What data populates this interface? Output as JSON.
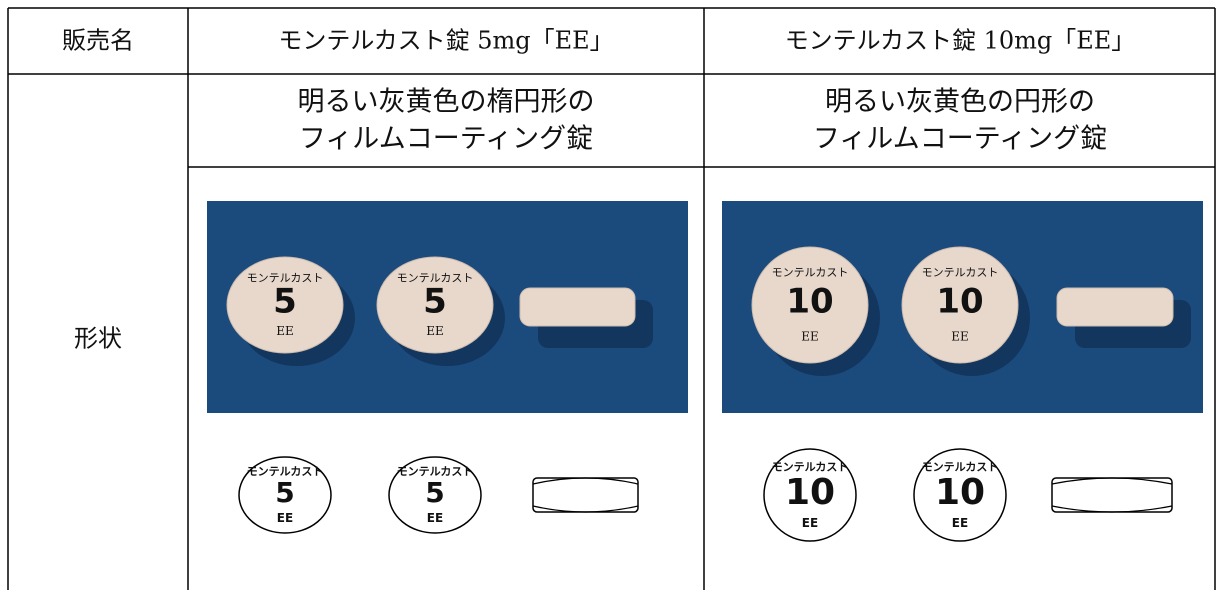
{
  "table": {
    "header": [
      "販売名",
      "モンテルカスト錠 5mg「EE」",
      "モンテルカスト錠 10mg「EE」"
    ],
    "row_label": "形状",
    "descriptions": [
      [
        "明るい灰黄色の楕円形の",
        "フィルムコーティング錠"
      ],
      [
        "明るい灰黄色の円形の",
        "フィルムコーティング錠"
      ]
    ],
    "imprints": [
      {
        "name": "モンテルカスト",
        "strength": "5",
        "code": "EE"
      },
      {
        "name": "モンテルカスト",
        "strength": "10",
        "code": "EE"
      }
    ]
  }
}
